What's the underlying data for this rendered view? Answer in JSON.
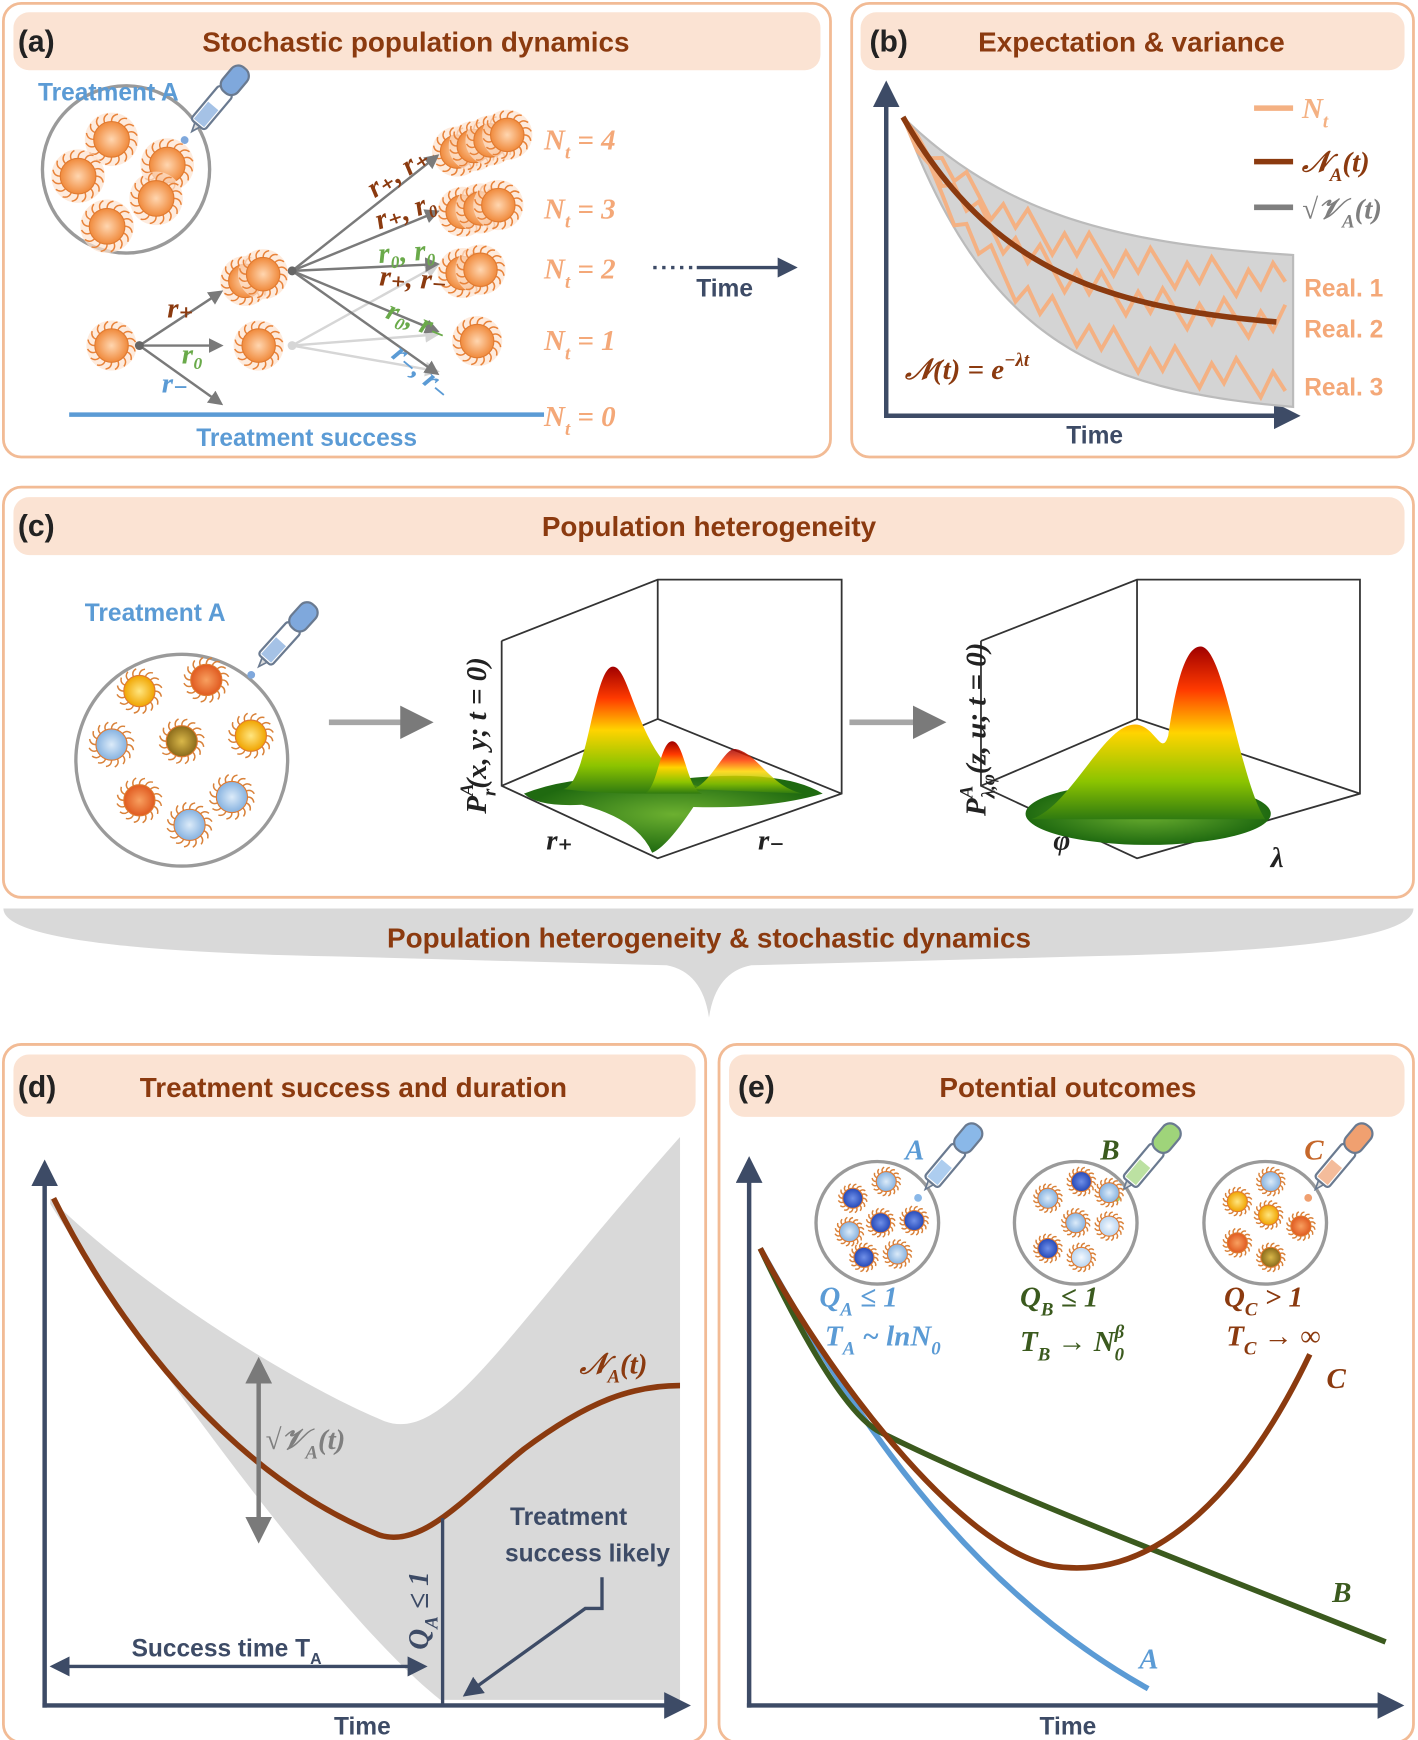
{
  "panel_a": {
    "label": "(a)",
    "title": "Stochastic population dynamics",
    "treatment": "Treatment A",
    "states": [
      [
        "N",
        {
          "sub": "t"
        },
        " = 4"
      ],
      [
        "N",
        {
          "sub": "t"
        },
        " = 3"
      ],
      [
        "N",
        {
          "sub": "t"
        },
        " = 2"
      ],
      [
        "N",
        {
          "sub": "t"
        },
        " = 1"
      ],
      [
        "N",
        {
          "sub": "t"
        },
        " = 0"
      ]
    ],
    "rates_first": [
      "r₊",
      "r₀",
      "r₋"
    ],
    "rates_branch": [
      "r₊, r₊",
      "r₊, r₀",
      "r₀, r₀",
      "r₊, r₋",
      "r₀, r₋",
      "r₋, r₋"
    ],
    "time": "Time",
    "success": "Treatment success"
  },
  "panel_b": {
    "label": "(b)",
    "title": "Expectation & variance",
    "legend": [
      [
        "N",
        {
          "sub": "t"
        }
      ],
      [
        "𝒩",
        {
          "sub": "A"
        },
        "(t)"
      ],
      [
        "√",
        "𝒱",
        {
          "sub": "A"
        },
        "(t)"
      ]
    ],
    "realizations": [
      "Real. 1",
      "Real. 2",
      "Real. 3"
    ],
    "formula": [
      "𝒩(t) = e",
      {
        "sup": "−λt"
      }
    ],
    "x_label": "Time"
  },
  "panel_c": {
    "label": "(c)",
    "title": "Population heterogeneity",
    "treatment": "Treatment A",
    "plot1": {
      "z_label": [
        "P",
        {
          "sup": "A"
        },
        {
          "sub": "r"
        },
        "(x, y; t = 0)"
      ],
      "x_label": "r₊",
      "y_label": "r₋"
    },
    "plot2": {
      "z_label": [
        "P",
        {
          "sup": "A"
        },
        {
          "sub": "λ,φ"
        },
        "(z, u; t = 0)"
      ],
      "x_label": "φ",
      "y_label": "λ"
    }
  },
  "bridge": "Population heterogeneity & stochastic dynamics",
  "panel_d": {
    "label": "(d)",
    "title": "Treatment success and duration",
    "mean": [
      "𝒩",
      {
        "sub": "A"
      },
      "(t)"
    ],
    "spread": [
      "√",
      "𝒱",
      {
        "sub": "A"
      },
      "(t)"
    ],
    "note": [
      "Treatment",
      "success likely"
    ],
    "threshold": [
      "Q",
      {
        "sub": "A"
      },
      " ≤ 1"
    ],
    "success_time": [
      "Success time ",
      "T",
      {
        "sub": "A"
      }
    ],
    "x_label": "Time"
  },
  "panel_e": {
    "label": "(e)",
    "title": "Potential outcomes",
    "treatments": [
      {
        "name": "A",
        "ratio": [
          "Q",
          {
            "sub": "A"
          },
          " ≤ 1"
        ],
        "time": [
          "T",
          {
            "sub": "A"
          },
          " ~ lnN",
          {
            "sub": "0"
          }
        ]
      },
      {
        "name": "B",
        "ratio": [
          "Q",
          {
            "sub": "B"
          },
          " ≤ 1"
        ],
        "time": [
          "T",
          {
            "sub": "B"
          },
          " → N",
          {
            "sup": "β"
          },
          {
            "sub": "0"
          }
        ]
      },
      {
        "name": "C",
        "ratio": [
          "Q",
          {
            "sub": "C"
          },
          " > 1"
        ],
        "time": [
          "T",
          {
            "sub": "C"
          },
          " → ∞"
        ]
      }
    ],
    "x_label": "Time"
  }
}
